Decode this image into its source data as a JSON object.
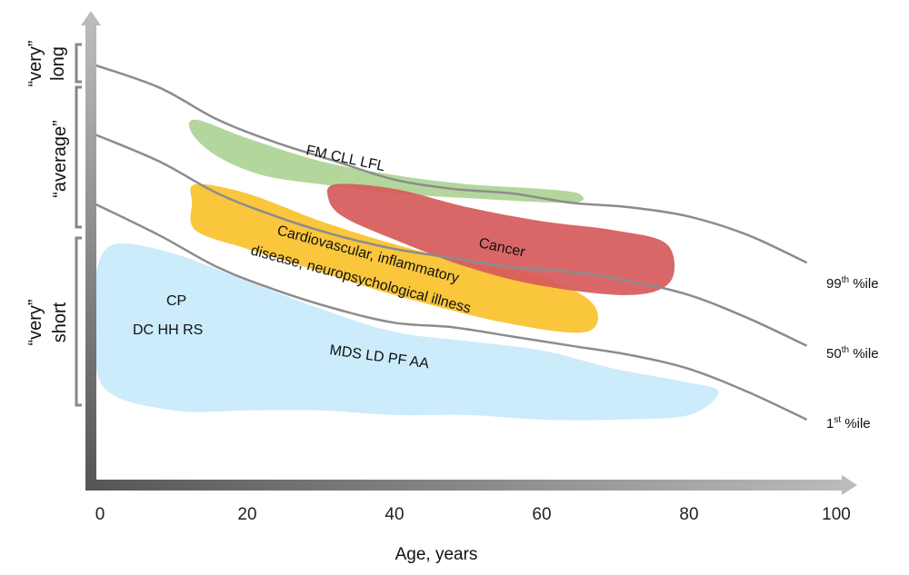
{
  "chart_data": {
    "type": "line",
    "xlabel": "Age, years",
    "xlim": [
      0,
      100
    ],
    "x_ticks": [
      0,
      20,
      40,
      60,
      80,
      100
    ],
    "x": [
      -1,
      8,
      16,
      24,
      32,
      40,
      48,
      56,
      64,
      72,
      80,
      88,
      96
    ],
    "series": [
      {
        "name": "99th %ile",
        "label_base": "99",
        "label_sup": "th",
        "label_rest": " %ile",
        "values": [
          0.9,
          0.85,
          0.78,
          0.73,
          0.69,
          0.65,
          0.63,
          0.62,
          0.6,
          0.59,
          0.57,
          0.53,
          0.47
        ]
      },
      {
        "name": "50th %ile",
        "label_base": "50",
        "label_sup": "th",
        "label_rest": " %ile",
        "values": [
          0.75,
          0.69,
          0.62,
          0.57,
          0.53,
          0.5,
          0.48,
          0.46,
          0.45,
          0.43,
          0.4,
          0.35,
          0.29
        ]
      },
      {
        "name": "1st %ile",
        "label_base": "1",
        "label_sup": "st",
        "label_rest": " %ile",
        "values": [
          0.6,
          0.53,
          0.46,
          0.41,
          0.37,
          0.34,
          0.33,
          0.31,
          0.29,
          0.27,
          0.24,
          0.19,
          0.13
        ]
      }
    ],
    "regions": [
      {
        "label_lines": [
          "FM CLL LFL"
        ],
        "color": "#a6cf8c",
        "opacity": 0.85,
        "outline": [
          [
            13,
            0.78
          ],
          [
            20,
            0.74
          ],
          [
            30,
            0.69
          ],
          [
            40,
            0.66
          ],
          [
            50,
            0.64
          ],
          [
            60,
            0.63
          ],
          [
            65,
            0.62
          ],
          [
            64,
            0.6
          ],
          [
            50,
            0.61
          ],
          [
            40,
            0.62
          ],
          [
            30,
            0.64
          ],
          [
            22,
            0.66
          ],
          [
            16,
            0.7
          ],
          [
            12.5,
            0.75
          ]
        ]
      },
      {
        "label_lines": [
          "Cancer"
        ],
        "color": "#d65b5b",
        "opacity": 0.93,
        "outline": [
          [
            32,
            0.64
          ],
          [
            40,
            0.63
          ],
          [
            50,
            0.59
          ],
          [
            60,
            0.56
          ],
          [
            70,
            0.54
          ],
          [
            77,
            0.51
          ],
          [
            77.5,
            0.43
          ],
          [
            72,
            0.4
          ],
          [
            60,
            0.42
          ],
          [
            50,
            0.46
          ],
          [
            40,
            0.52
          ],
          [
            33,
            0.57
          ],
          [
            31,
            0.61
          ]
        ]
      },
      {
        "label_lines": [
          "Cardiovascular, inflammatory",
          "disease, neuropsychological illness"
        ],
        "color": "#f8c12b",
        "opacity": 0.92,
        "outline": [
          [
            13,
            0.64
          ],
          [
            20,
            0.62
          ],
          [
            30,
            0.56
          ],
          [
            40,
            0.51
          ],
          [
            50,
            0.47
          ],
          [
            60,
            0.44
          ],
          [
            67,
            0.38
          ],
          [
            66,
            0.32
          ],
          [
            55,
            0.34
          ],
          [
            40,
            0.4
          ],
          [
            30,
            0.45
          ],
          [
            20,
            0.5
          ],
          [
            13,
            0.54
          ],
          [
            12.5,
            0.6
          ]
        ]
      },
      {
        "label_lines": [
          "MDS LD PF AA"
        ],
        "color": "#ccebfb",
        "opacity": 1,
        "outline": [
          [
            2,
            0.51
          ],
          [
            10,
            0.49
          ],
          [
            20,
            0.43
          ],
          [
            30,
            0.37
          ],
          [
            40,
            0.32
          ],
          [
            50,
            0.3
          ],
          [
            60,
            0.28
          ],
          [
            70,
            0.24
          ],
          [
            80,
            0.21
          ],
          [
            84,
            0.19
          ],
          [
            80,
            0.14
          ],
          [
            70,
            0.13
          ],
          [
            60,
            0.13
          ],
          [
            50,
            0.14
          ],
          [
            40,
            0.14
          ],
          [
            30,
            0.15
          ],
          [
            20,
            0.15
          ],
          [
            10,
            0.15
          ],
          [
            0.5,
            0.2
          ],
          [
            -0.5,
            0.35
          ],
          [
            -0.5,
            0.45
          ]
        ]
      }
    ],
    "annotations": [
      "CP",
      "DC HH RS"
    ],
    "y_groups": [
      {
        "lines": [
          "“very”",
          "long"
        ]
      },
      {
        "lines": [
          "“average”"
        ]
      },
      {
        "lines": [
          "“very”",
          "short"
        ]
      }
    ]
  }
}
